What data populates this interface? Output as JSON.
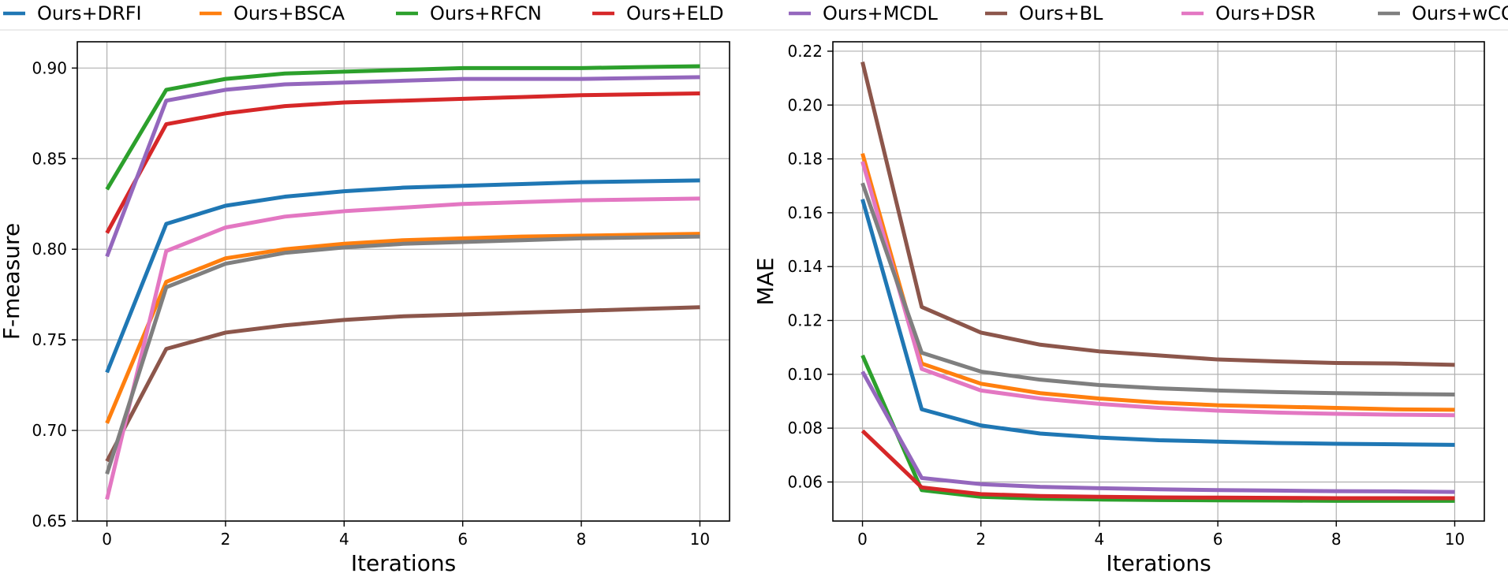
{
  "legend": {
    "entries": [
      {
        "name": "Ours+DRFI",
        "color": "#1f77b4"
      },
      {
        "name": "Ours+BSCA",
        "color": "#ff7f0e"
      },
      {
        "name": "Ours+RFCN",
        "color": "#2ca02c"
      },
      {
        "name": "Ours+ELD",
        "color": "#d62728"
      },
      {
        "name": "Ours+MCDL",
        "color": "#9467bd"
      },
      {
        "name": "Ours+BL",
        "color": "#8c564b"
      },
      {
        "name": "Ours+DSR",
        "color": "#e377c2"
      },
      {
        "name": "Ours+wCO",
        "color": "#7f7f7f"
      }
    ],
    "placement": "top"
  },
  "chart_data": [
    {
      "type": "line",
      "xlabel": "Iterations",
      "ylabel": "F-measure",
      "xlim": [
        -0.5,
        10.5
      ],
      "ylim": [
        0.65,
        0.9145
      ],
      "xticks": [
        0,
        2,
        4,
        6,
        8,
        10
      ],
      "xtick_labels": [
        "0",
        "2",
        "4",
        "6",
        "8",
        "10"
      ],
      "yticks": [
        0.65,
        0.7,
        0.75,
        0.8,
        0.85,
        0.9
      ],
      "ytick_labels": [
        "0.65",
        "0.70",
        "0.75",
        "0.80",
        "0.85",
        "0.90"
      ],
      "grid": true,
      "x": [
        0,
        1,
        2,
        3,
        4,
        5,
        6,
        7,
        8,
        9,
        10
      ],
      "series": [
        {
          "name": "Ours+DRFI",
          "color": "#1f77b4",
          "values": [
            0.732,
            0.814,
            0.824,
            0.829,
            0.832,
            0.834,
            0.835,
            0.836,
            0.837,
            0.8375,
            0.838
          ]
        },
        {
          "name": "Ours+BSCA",
          "color": "#ff7f0e",
          "values": [
            0.704,
            0.782,
            0.795,
            0.8,
            0.803,
            0.805,
            0.806,
            0.807,
            0.8075,
            0.808,
            0.8085
          ]
        },
        {
          "name": "Ours+RFCN",
          "color": "#2ca02c",
          "values": [
            0.833,
            0.888,
            0.894,
            0.897,
            0.898,
            0.899,
            0.9,
            0.9,
            0.9,
            0.9005,
            0.901
          ]
        },
        {
          "name": "Ours+ELD",
          "color": "#d62728",
          "values": [
            0.809,
            0.869,
            0.875,
            0.879,
            0.881,
            0.882,
            0.883,
            0.884,
            0.885,
            0.8855,
            0.886
          ]
        },
        {
          "name": "Ours+MCDL",
          "color": "#9467bd",
          "values": [
            0.796,
            0.882,
            0.888,
            0.891,
            0.892,
            0.893,
            0.894,
            0.894,
            0.894,
            0.8945,
            0.895
          ]
        },
        {
          "name": "Ours+BL",
          "color": "#8c564b",
          "values": [
            0.683,
            0.745,
            0.754,
            0.758,
            0.761,
            0.763,
            0.764,
            0.765,
            0.766,
            0.767,
            0.768
          ]
        },
        {
          "name": "Ours+DSR",
          "color": "#e377c2",
          "values": [
            0.662,
            0.799,
            0.812,
            0.818,
            0.821,
            0.823,
            0.825,
            0.826,
            0.827,
            0.8275,
            0.828
          ]
        },
        {
          "name": "Ours+wCO",
          "color": "#7f7f7f",
          "values": [
            0.676,
            0.779,
            0.792,
            0.798,
            0.801,
            0.803,
            0.804,
            0.805,
            0.806,
            0.8065,
            0.807
          ]
        }
      ]
    },
    {
      "type": "line",
      "xlabel": "Iterations",
      "ylabel": "MAE",
      "xlim": [
        -0.5,
        10.5
      ],
      "ylim": [
        0.0455,
        0.2235
      ],
      "xticks": [
        0,
        2,
        4,
        6,
        8,
        10
      ],
      "xtick_labels": [
        "0",
        "2",
        "4",
        "6",
        "8",
        "10"
      ],
      "yticks": [
        0.06,
        0.08,
        0.1,
        0.12,
        0.14,
        0.16,
        0.18,
        0.2,
        0.22
      ],
      "ytick_labels": [
        "0.06",
        "0.08",
        "0.10",
        "0.12",
        "0.14",
        "0.16",
        "0.18",
        "0.20",
        "0.22"
      ],
      "grid": true,
      "x": [
        0,
        1,
        2,
        3,
        4,
        5,
        6,
        7,
        8,
        9,
        10
      ],
      "series": [
        {
          "name": "Ours+DRFI",
          "color": "#1f77b4",
          "values": [
            0.165,
            0.087,
            0.081,
            0.078,
            0.0765,
            0.0755,
            0.075,
            0.0745,
            0.0742,
            0.074,
            0.0738
          ]
        },
        {
          "name": "Ours+BSCA",
          "color": "#ff7f0e",
          "values": [
            0.182,
            0.104,
            0.0965,
            0.093,
            0.091,
            0.0895,
            0.0885,
            0.088,
            0.0875,
            0.087,
            0.0868
          ]
        },
        {
          "name": "Ours+RFCN",
          "color": "#2ca02c",
          "values": [
            0.107,
            0.057,
            0.0545,
            0.0538,
            0.0535,
            0.0533,
            0.0532,
            0.0531,
            0.053,
            0.053,
            0.053
          ]
        },
        {
          "name": "Ours+ELD",
          "color": "#d62728",
          "values": [
            0.079,
            0.058,
            0.0555,
            0.0548,
            0.0545,
            0.0543,
            0.0542,
            0.0541,
            0.054,
            0.054,
            0.054
          ]
        },
        {
          "name": "Ours+MCDL",
          "color": "#9467bd",
          "values": [
            0.101,
            0.0615,
            0.0592,
            0.0582,
            0.0577,
            0.0573,
            0.057,
            0.0568,
            0.0566,
            0.0565,
            0.0563
          ]
        },
        {
          "name": "Ours+BL",
          "color": "#8c564b",
          "values": [
            0.216,
            0.125,
            0.1155,
            0.111,
            0.1085,
            0.107,
            0.1055,
            0.1048,
            0.1042,
            0.104,
            0.1035
          ]
        },
        {
          "name": "Ours+DSR",
          "color": "#e377c2",
          "values": [
            0.179,
            0.102,
            0.094,
            0.091,
            0.089,
            0.0875,
            0.0865,
            0.0858,
            0.0853,
            0.085,
            0.0848
          ]
        },
        {
          "name": "Ours+wCO",
          "color": "#7f7f7f",
          "values": [
            0.171,
            0.108,
            0.101,
            0.098,
            0.096,
            0.0948,
            0.094,
            0.0934,
            0.093,
            0.0927,
            0.0925
          ]
        }
      ]
    }
  ]
}
